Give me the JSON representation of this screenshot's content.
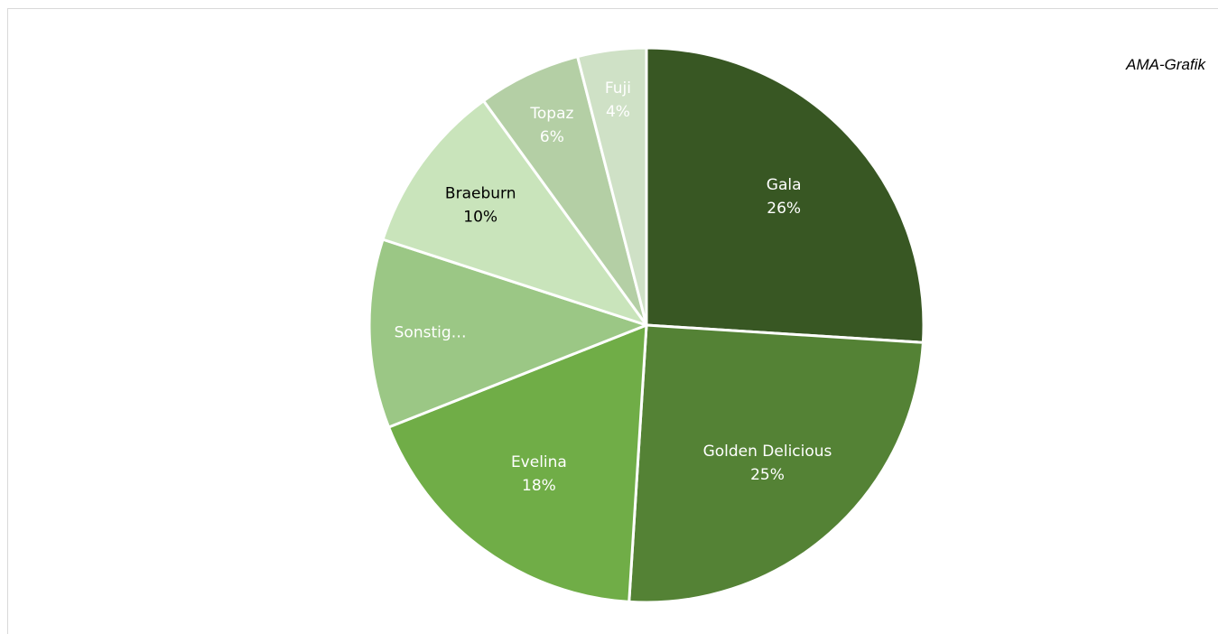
{
  "source_note": "AMA-Grafik",
  "chart_data": {
    "type": "pie",
    "start": "12 o'clock",
    "direction": "clockwise",
    "slices": [
      {
        "label": "Gala",
        "percent_label": "26%",
        "value": 26,
        "color": "#385723",
        "text_color": "#ffffff"
      },
      {
        "label": "Golden Delicious",
        "percent_label": "25%",
        "value": 25,
        "color": "#548235",
        "text_color": "#ffffff"
      },
      {
        "label": "Evelina",
        "percent_label": "18%",
        "value": 18,
        "color": "#70ad47",
        "text_color": "#ffffff"
      },
      {
        "label": "Sonstig…",
        "percent_label": "",
        "value": 11,
        "color": "#9bc785",
        "text_color": "#ffffff"
      },
      {
        "label": "Braeburn",
        "percent_label": "10%",
        "value": 10,
        "color": "#c9e4bb",
        "text_color": "#000000"
      },
      {
        "label": "Topaz",
        "percent_label": "6%",
        "value": 6,
        "color": "#b4cfa5",
        "text_color": "#ffffff"
      },
      {
        "label": "Fuji",
        "percent_label": "4%",
        "value": 4,
        "color": "#cfe1c6",
        "text_color": "#ffffff"
      }
    ]
  }
}
